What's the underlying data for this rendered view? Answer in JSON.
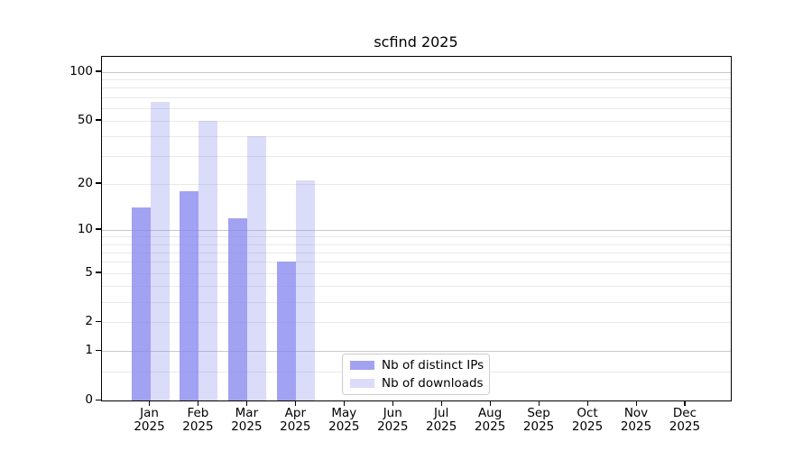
{
  "chart_data": {
    "type": "bar",
    "title": "scfind 2025",
    "categories": [
      "Jan 2025",
      "Feb 2025",
      "Mar 2025",
      "Apr 2025",
      "May 2025",
      "Jun 2025",
      "Jul 2025",
      "Aug 2025",
      "Sep 2025",
      "Oct 2025",
      "Nov 2025",
      "Dec 2025"
    ],
    "series": [
      {
        "name": "Nb of distinct IPs",
        "key": "ips",
        "color": "rgba(136,136,238,0.78)",
        "values": [
          14,
          18,
          12,
          6,
          0,
          0,
          0,
          0,
          0,
          0,
          0,
          0
        ]
      },
      {
        "name": "Nb of downloads",
        "key": "downloads",
        "color": "rgba(136,136,238,0.30)",
        "values": [
          65,
          50,
          40,
          21,
          0,
          0,
          0,
          0,
          0,
          0,
          0,
          0
        ]
      }
    ],
    "yscale": "log1p",
    "ylim": [
      0,
      124
    ],
    "yticks": [
      0,
      1,
      2,
      5,
      10,
      20,
      50,
      100
    ],
    "ytick_labels": [
      "0",
      "1",
      "2",
      "5",
      "10",
      "20",
      "50",
      "100"
    ],
    "grid": true,
    "grid_major_values": [
      1,
      10,
      100
    ],
    "grid_minor_values": [
      0.5,
      2,
      3,
      4,
      5,
      6,
      7,
      8,
      9,
      20,
      30,
      40,
      50,
      60,
      70,
      80,
      90
    ],
    "legend_position": "lower center",
    "xlabel": "",
    "ylabel": ""
  },
  "x_axis": {
    "months": [
      "Jan",
      "Feb",
      "Mar",
      "Apr",
      "May",
      "Jun",
      "Jul",
      "Aug",
      "Sep",
      "Oct",
      "Nov",
      "Dec"
    ],
    "year": "2025"
  },
  "colors": {
    "bar_distinct_ips": "rgba(136,136,238,0.78)",
    "bar_downloads": "rgba(136,136,238,0.30)",
    "grid_major": "#c9c9c9",
    "grid_minor": "#e9e9e9",
    "axis_line": "#000000",
    "legend_border": "#cccccc",
    "background": "#ffffff"
  }
}
